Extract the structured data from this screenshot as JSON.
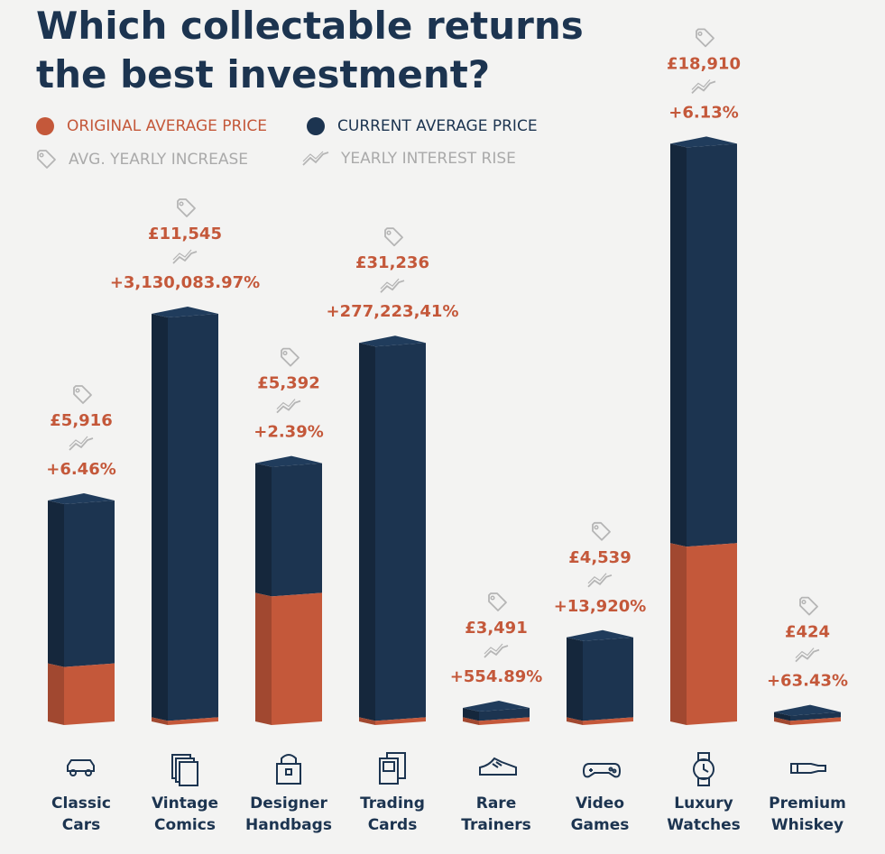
{
  "title_line1": "Which collectable returns",
  "title_line2": "the best investment?",
  "legend": {
    "original": "ORIGINAL AVERAGE PRICE",
    "current": "CURRENT AVERAGE PRICE",
    "avg_increase": "AVG. YEARLY INCREASE",
    "interest_rise": "YEARLY INTEREST RISE"
  },
  "colors": {
    "original": "#c4583a",
    "current": "#1c3450",
    "accent_text": "#c4583a",
    "muted": "#aaaaaa"
  },
  "chart_data": {
    "type": "bar",
    "stacked": true,
    "categories": [
      [
        "Classic",
        "Cars"
      ],
      [
        "Vintage",
        "Comics"
      ],
      [
        "Designer",
        "Handbags"
      ],
      [
        "Trading",
        "Cards"
      ],
      [
        "Rare",
        "Trainers"
      ],
      [
        "Video",
        "Games"
      ],
      [
        "Luxury",
        "Watches"
      ],
      [
        "Premium",
        "Whiskey"
      ]
    ],
    "icons": [
      "car-icon",
      "comics-icon",
      "handbag-icon",
      "trading-card-icon",
      "trainer-icon",
      "gamepad-icon",
      "watch-icon",
      "bottle-icon"
    ],
    "current_price_labels": [
      "£5,916",
      "£11,545",
      "£5,392",
      "£31,236",
      "£3,491",
      "£4,539",
      "£18,910",
      "£424"
    ],
    "interest_rise_labels": [
      "+6.46%",
      "+3,130,083.97%",
      "+2.39%",
      "+277,223,41%",
      "+554.89%",
      "+13,920%",
      "+6.13%",
      "+63.43%"
    ],
    "series": [
      {
        "name": "ORIGINAL AVERAGE PRICE",
        "relative_height": [
          0.14,
          0.01,
          0.31,
          0.01,
          0.01,
          0.01,
          0.43,
          0.01
        ]
      },
      {
        "name": "CURRENT AVERAGE PRICE",
        "relative_height": [
          0.55,
          1.0,
          0.64,
          0.93,
          0.05,
          0.22,
          1.41,
          0.04
        ]
      }
    ]
  }
}
